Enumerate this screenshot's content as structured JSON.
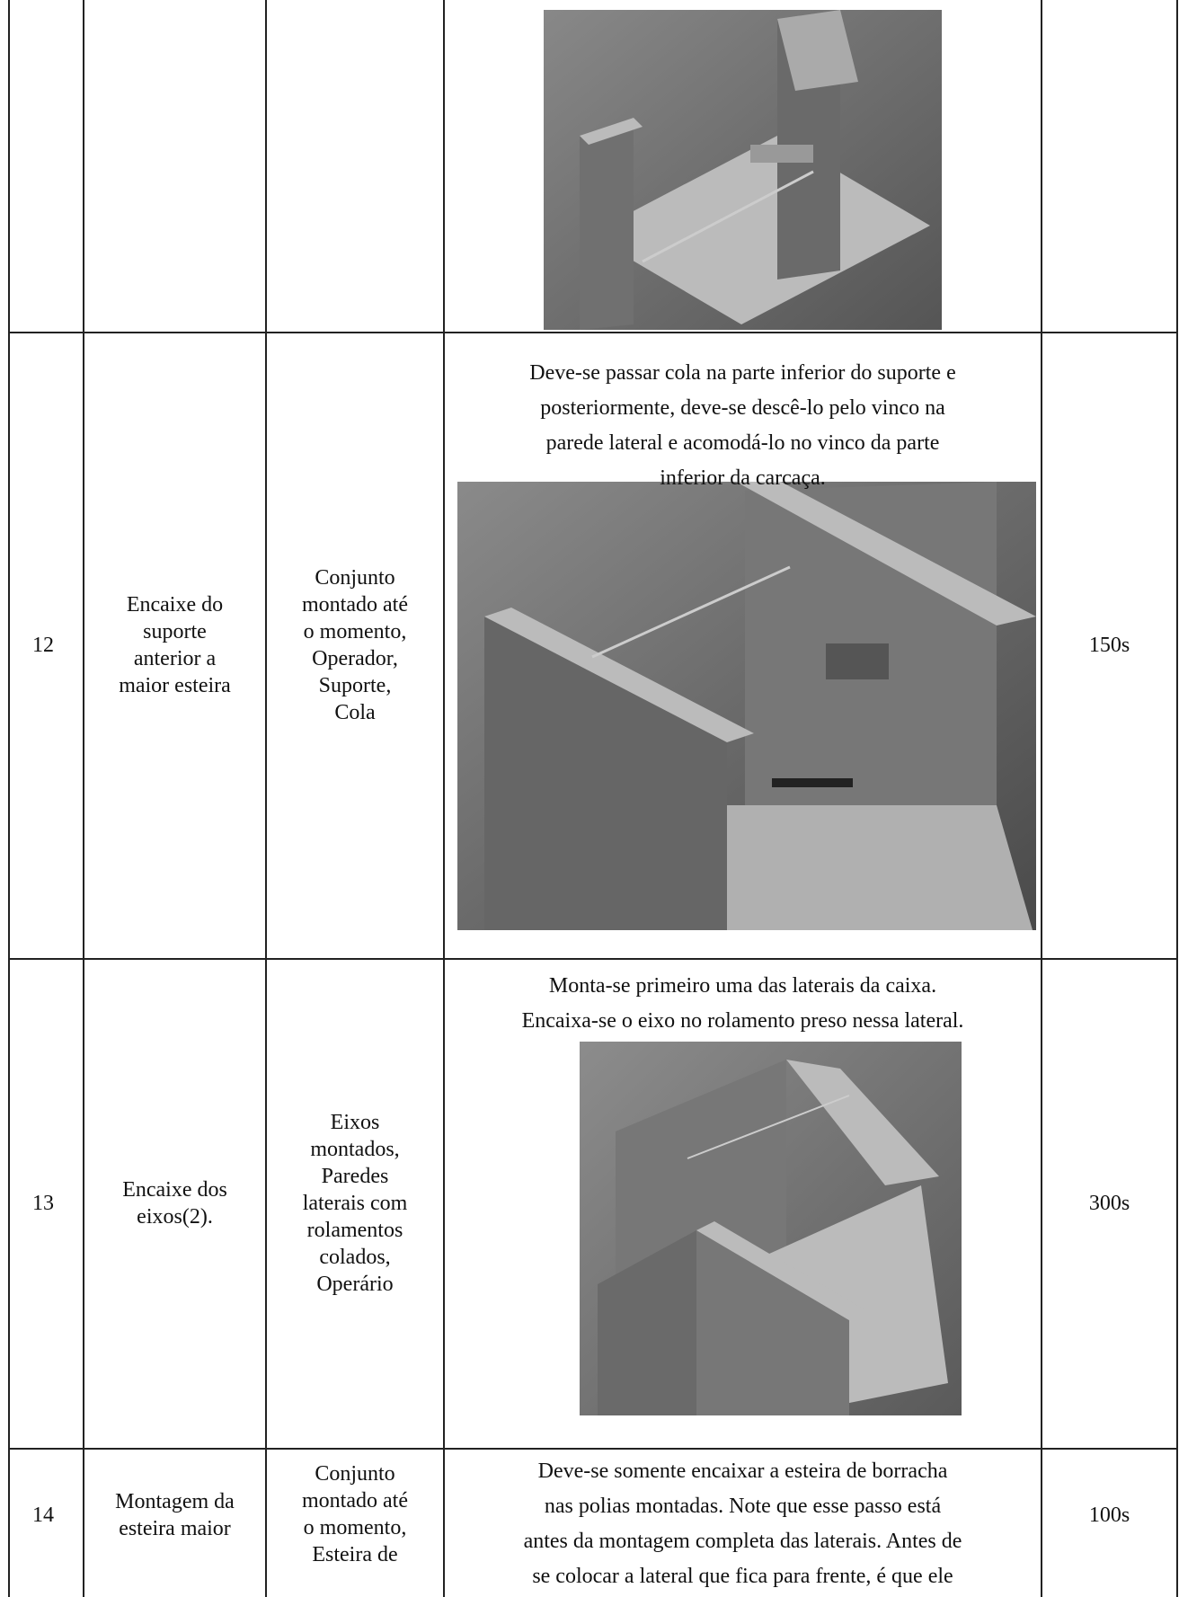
{
  "table": {
    "rows": [
      {
        "number": "12",
        "step": [
          "Encaixe do",
          "suporte",
          "anterior a",
          "maior esteira"
        ],
        "resources": [
          "Conjunto",
          "montado até",
          "o momento,",
          "Operador,",
          "Suporte,",
          "Cola"
        ],
        "description": [
          "Deve-se passar cola na parte inferior do suporte e",
          "posteriormente, deve-se descê-lo pelo vinco na",
          "parede lateral e acomodá-lo no vinco da parte",
          "inferior da carcaça."
        ],
        "time": "150s"
      },
      {
        "number": "13",
        "step": [
          "Encaixe dos",
          "eixos(2)."
        ],
        "resources": [
          "Eixos",
          "montados,",
          "Paredes",
          "laterais com",
          "rolamentos",
          "colados,",
          "Operário"
        ],
        "description": [
          "Monta-se primeiro uma das laterais da caixa.",
          "Encaixa-se o eixo no rolamento preso nessa lateral."
        ],
        "time": "300s"
      },
      {
        "number": "14",
        "step": [
          "Montagem da",
          "esteira maior"
        ],
        "resources": [
          "Conjunto",
          "montado até",
          "o momento,",
          "Esteira de"
        ],
        "description": [
          "Deve-se somente encaixar a esteira de borracha",
          "nas polias montadas. Note que esse passo está",
          "antes da montagem completa das laterais. Antes de",
          "se colocar a lateral que fica para frente, é que ele"
        ],
        "time": "100s"
      }
    ]
  }
}
